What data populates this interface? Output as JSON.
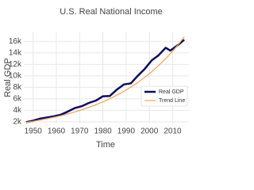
{
  "chart_data": {
    "type": "line",
    "title": "U.S. Real National Income",
    "x_label": "Time",
    "y_label": "Real GDP",
    "x": [
      1947,
      1950,
      1953,
      1956,
      1959,
      1962,
      1965,
      1968,
      1971,
      1974,
      1977,
      1980,
      1983,
      1986,
      1989,
      1992,
      1995,
      1998,
      2001,
      2004,
      2007,
      2009,
      2011,
      2013,
      2015
    ],
    "series": [
      {
        "name": "Real GDP",
        "color": "#0d0d5c",
        "width": 2.5,
        "values": [
          1940,
          2180,
          2550,
          2750,
          2960,
          3250,
          3800,
          4400,
          4720,
          5280,
          5680,
          6450,
          6500,
          7600,
          8500,
          8700,
          10000,
          11200,
          12700,
          13600,
          14900,
          14400,
          15000,
          15600,
          16300
        ]
      },
      {
        "name": "Trend Line",
        "color": "#f5a05a",
        "width": 1.2,
        "values": [
          1900,
          2092,
          2303,
          2535,
          2791,
          3072,
          3382,
          3724,
          4100,
          4514,
          4970,
          5472,
          6024,
          6632,
          7301,
          8038,
          8849,
          9743,
          10727,
          11809,
          13000,
          13859,
          14775,
          15751,
          16800
        ]
      }
    ],
    "xlim": [
      1946,
      2017
    ],
    "xticks": [
      1950,
      1960,
      1970,
      1980,
      1990,
      2000,
      2010
    ],
    "ylim": [
      1700,
      17700
    ],
    "yticks": [
      {
        "value": 2000,
        "label": "2k"
      },
      {
        "value": 4000,
        "label": "4k"
      },
      {
        "value": 6000,
        "label": "6k"
      },
      {
        "value": 8000,
        "label": "8k"
      },
      {
        "value": 10000,
        "label": "10k"
      },
      {
        "value": 12000,
        "label": "12k"
      },
      {
        "value": 14000,
        "label": "14k"
      },
      {
        "value": 16000,
        "label": "16k"
      }
    ],
    "grid": true,
    "legend_position": "bottom-right"
  }
}
